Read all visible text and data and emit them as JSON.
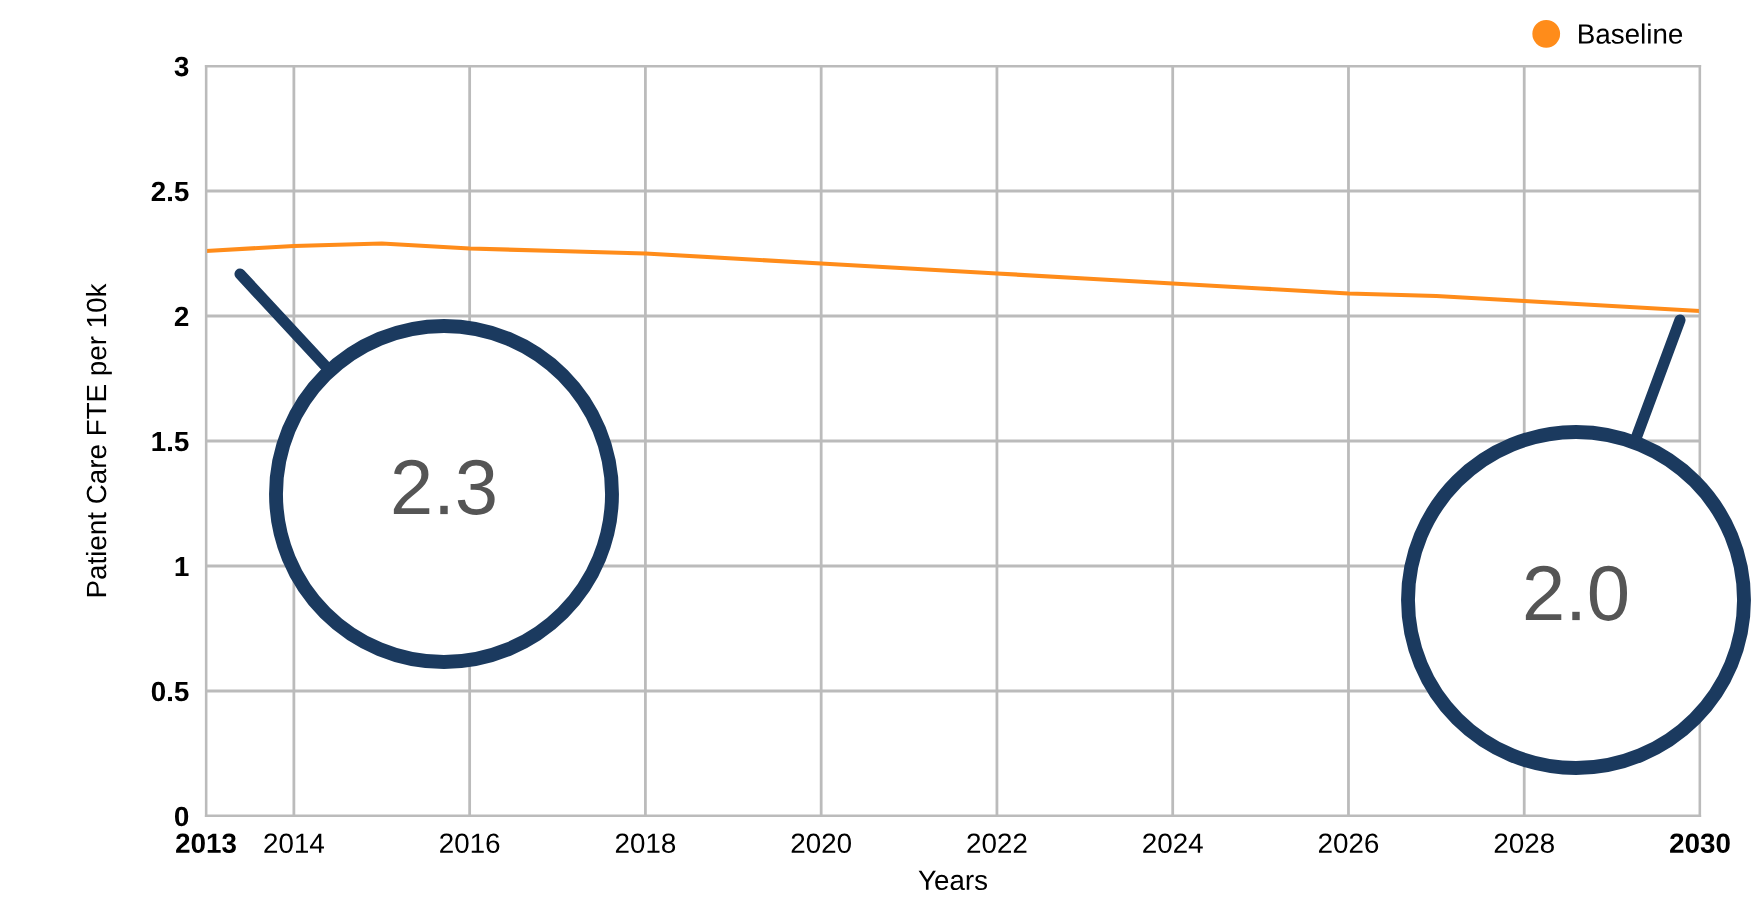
{
  "chart_data": {
    "type": "line",
    "xlabel": "Years",
    "ylabel": "Patient Care FTE per 10k",
    "x": [
      2013,
      2014,
      2015,
      2016,
      2017,
      2018,
      2019,
      2020,
      2021,
      2022,
      2023,
      2024,
      2025,
      2026,
      2027,
      2028,
      2029,
      2030
    ],
    "series": [
      {
        "name": "Baseline",
        "color": "#ff8c1a",
        "values": [
          2.26,
          2.28,
          2.29,
          2.27,
          2.26,
          2.25,
          2.23,
          2.21,
          2.19,
          2.17,
          2.15,
          2.13,
          2.11,
          2.09,
          2.08,
          2.06,
          2.04,
          2.02
        ]
      }
    ],
    "xlim": [
      2013,
      2030
    ],
    "xticks": [
      2013,
      2014,
      2016,
      2018,
      2020,
      2022,
      2024,
      2026,
      2028,
      2030
    ],
    "ylim": [
      0,
      3
    ],
    "yticks": [
      0,
      0.5,
      1,
      1.5,
      2,
      2.5,
      3
    ],
    "grid": true,
    "legend": "top right",
    "marker": "none",
    "line_style": "solid",
    "annotations": [
      "2.3",
      "2.0"
    ]
  }
}
